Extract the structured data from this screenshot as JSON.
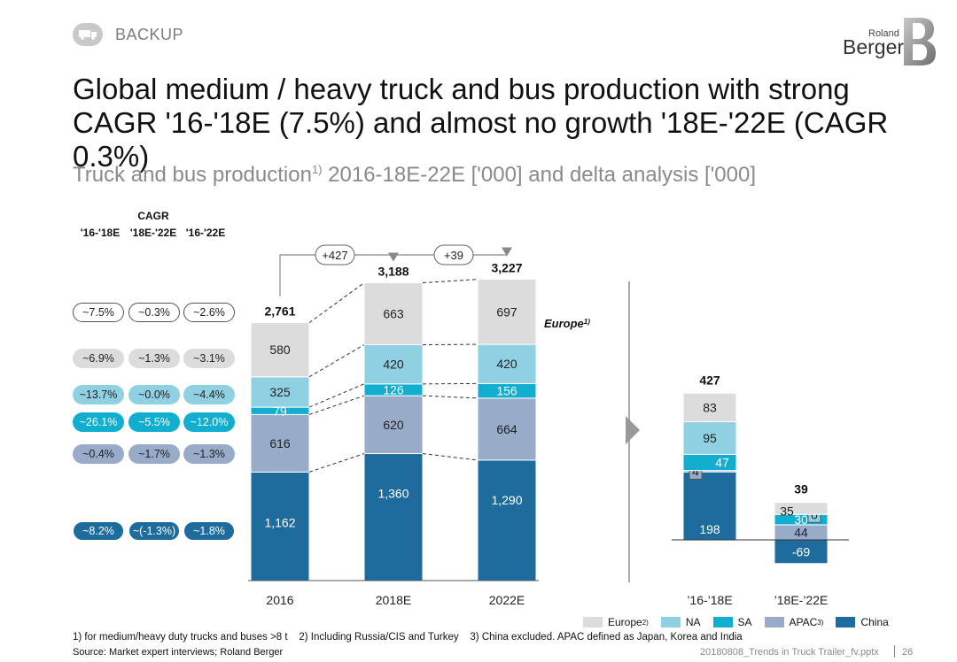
{
  "header": {
    "backup_label": "BACKUP",
    "logo_top": "Roland",
    "logo_bottom": "Berger"
  },
  "title": "Global medium / heavy truck and bus production with strong CAGR '16-'18E (7.5%) and almost no growth '18E-'22E (CAGR 0.3%)",
  "subtitle": {
    "main": "Truck and bus production",
    "sup": "1)",
    "rest": " 2016-18E-22E ['000] and delta analysis ['000]"
  },
  "cagr_table": {
    "title": "CAGR",
    "columns": [
      "'16-'18E",
      "'18E-'22E",
      "'16-'22E"
    ],
    "rows": [
      {
        "segment": "Total",
        "values": [
          "~7.5%",
          "~0.3%",
          "~2.6%"
        ]
      },
      {
        "segment": "Europe",
        "values": [
          "~6.9%",
          "~1.3%",
          "~3.1%"
        ]
      },
      {
        "segment": "NA",
        "values": [
          "~13.7%",
          "~0.0%",
          "~4.4%"
        ]
      },
      {
        "segment": "SA",
        "values": [
          "~26.1%",
          "~5.5%",
          "~12.0%"
        ]
      },
      {
        "segment": "APAC",
        "values": [
          "~0.4%",
          "~1.7%",
          "~1.3%"
        ]
      },
      {
        "segment": "China",
        "values": [
          "~8.2%",
          "~(-1.3%)",
          "~1.8%"
        ]
      }
    ]
  },
  "colors": {
    "Europe": "#dcdcdc",
    "NA": "#8fd0e2",
    "SA": "#11aecf",
    "APAC": "#98abc8",
    "China": "#1e6b9e",
    "Total": "#ffffff"
  },
  "chart_data": [
    {
      "type": "bar",
      "stacked": true,
      "title": "Truck and bus production 2016-18E-22E ['000]",
      "categories": [
        "2016",
        "2018E",
        "2022E"
      ],
      "series": [
        {
          "name": "China",
          "values": [
            1162,
            1360,
            1290
          ]
        },
        {
          "name": "APAC",
          "values": [
            616,
            620,
            664
          ]
        },
        {
          "name": "SA",
          "values": [
            79,
            126,
            156
          ]
        },
        {
          "name": "NA",
          "values": [
            325,
            420,
            420
          ]
        },
        {
          "name": "Europe",
          "values": [
            580,
            663,
            697
          ]
        }
      ],
      "display_labels": {
        "China": [
          "1,162",
          "1,360",
          "1,290"
        ],
        "APAC": [
          "616",
          "620",
          "664"
        ],
        "SA": [
          "79",
          "126",
          "156"
        ],
        "NA": [
          "325",
          "420",
          "420"
        ],
        "Europe": [
          "580",
          "663",
          "697"
        ]
      },
      "totals": [
        "2,761",
        "3,188",
        "3,227"
      ],
      "deltas": [
        "+427",
        "+39"
      ],
      "annotation": "Europe",
      "annotation_sup": "1)"
    },
    {
      "type": "bar",
      "stacked": true,
      "title": "Delta analysis ['000]",
      "categories": [
        "’16-’18E",
        "’18E-’22E"
      ],
      "series": [
        {
          "name": "China",
          "values": [
            198,
            -69
          ]
        },
        {
          "name": "APAC",
          "values": [
            4,
            44
          ]
        },
        {
          "name": "SA",
          "values": [
            47,
            30
          ]
        },
        {
          "name": "NA",
          "values": [
            95,
            0
          ]
        },
        {
          "name": "Europe",
          "values": [
            83,
            35
          ]
        }
      ],
      "display_labels": {
        "China": [
          "198",
          "-69"
        ],
        "APAC": [
          "4",
          "44"
        ],
        "SA": [
          "47",
          "30"
        ],
        "NA": [
          "95",
          "0"
        ],
        "Europe": [
          "83",
          "35"
        ]
      },
      "totals": [
        "427",
        "39"
      ]
    }
  ],
  "legend": [
    {
      "name": "Europe",
      "label": "Europe",
      "sup": "2)"
    },
    {
      "name": "NA",
      "label": "NA",
      "sup": ""
    },
    {
      "name": "SA",
      "label": "SA",
      "sup": ""
    },
    {
      "name": "APAC",
      "label": "APAC",
      "sup": "3)"
    },
    {
      "name": "China",
      "label": "China",
      "sup": ""
    }
  ],
  "footer": {
    "footnote": "1) for medium/heavy duty trucks and buses >8 t    2) Including Russia/CIS and Turkey    3) China excluded. APAC defined as Japan, Korea and India",
    "source": "Source: Market expert interviews; Roland Berger",
    "filename": "20180808_Trends in Truck Trailer_fv.pptx",
    "page": "26"
  }
}
